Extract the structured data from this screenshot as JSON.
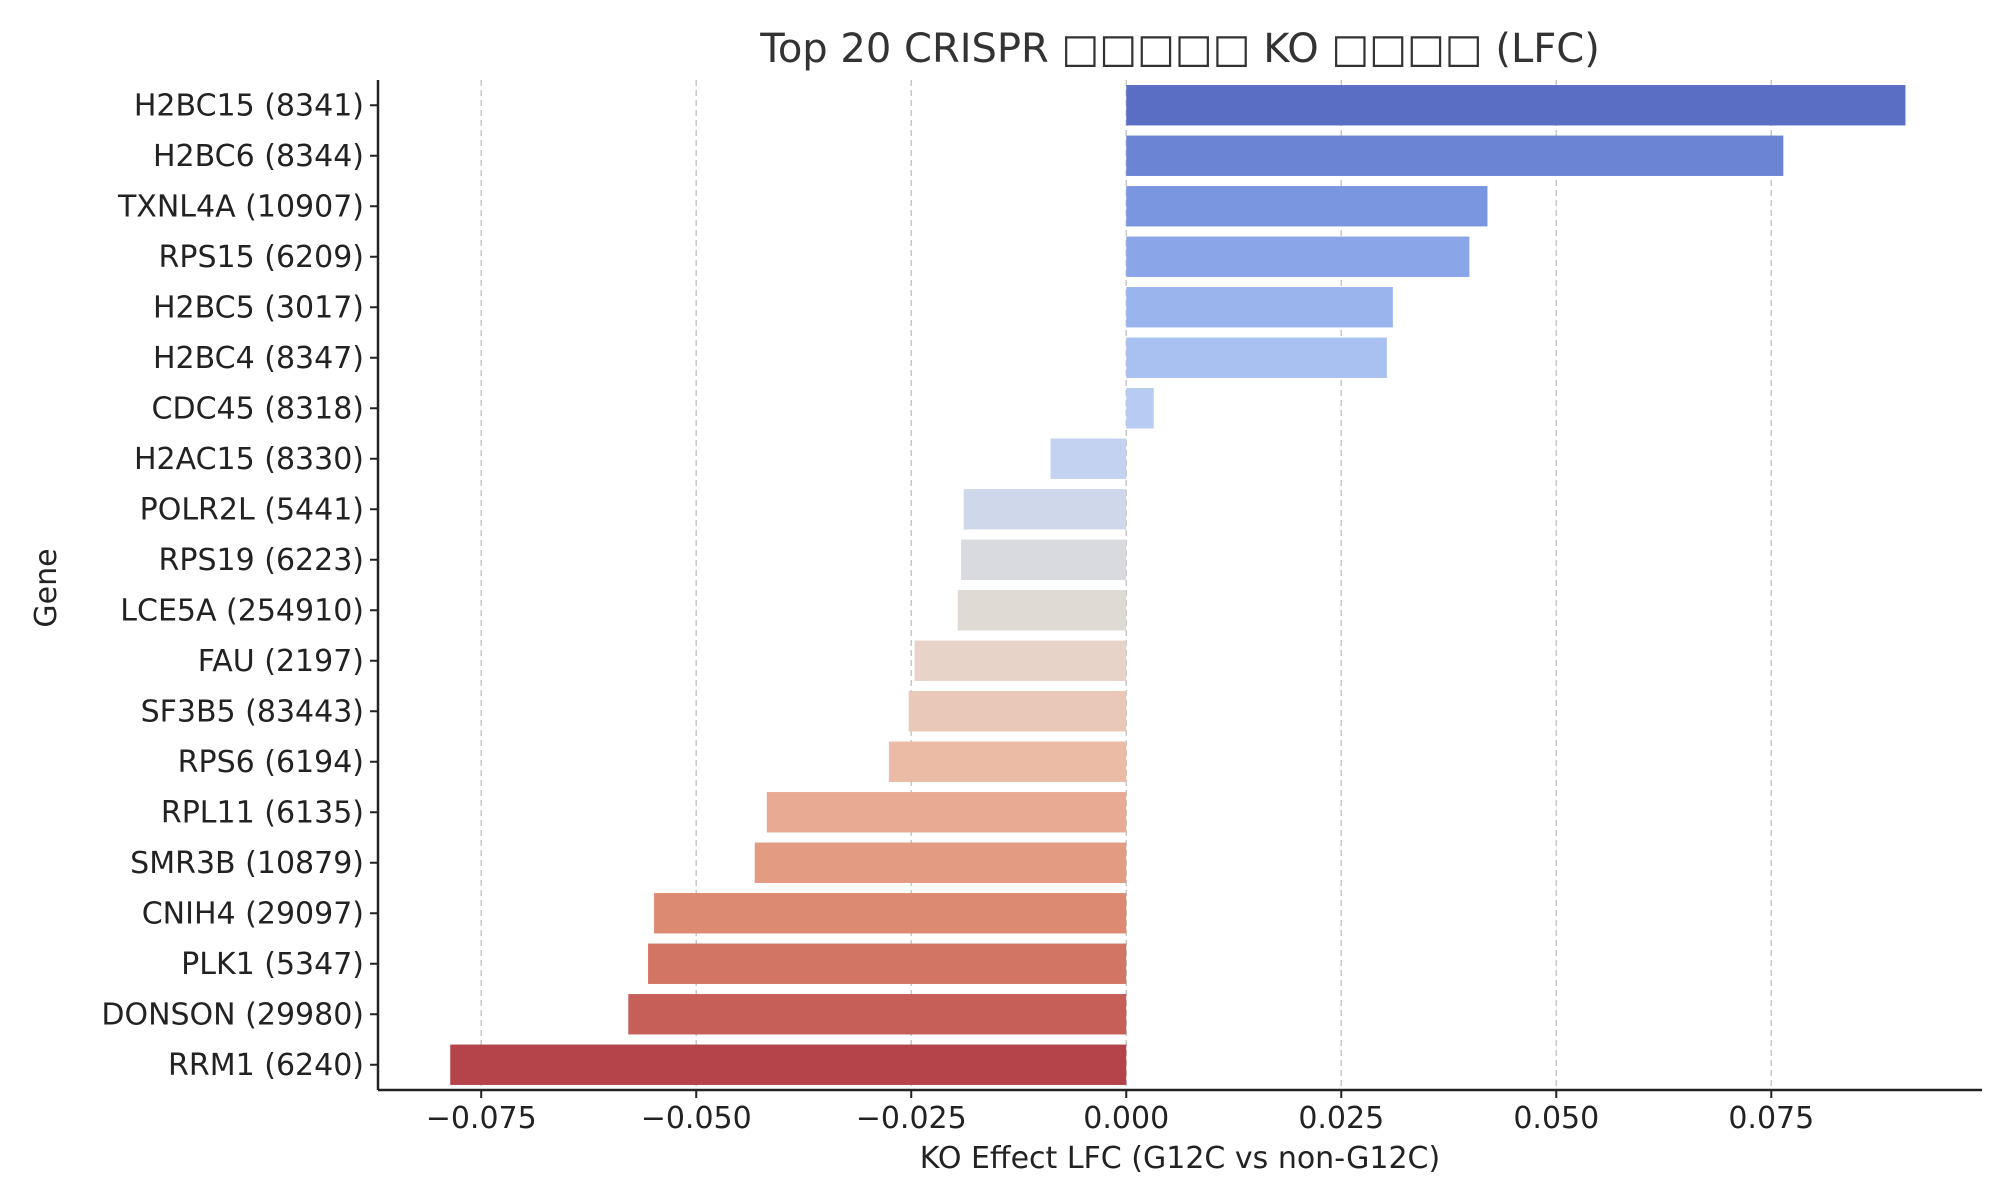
{
  "chart_data": {
    "type": "bar",
    "orientation": "horizontal",
    "title": "Top 20 CRISPR □□□□□ KO □□□□ (LFC)",
    "xlabel": "KO Effect LFC (G12C vs non-G12C)",
    "ylabel": "Gene",
    "xlim": [
      -0.087,
      0.0995
    ],
    "xticks": [
      -0.075,
      -0.05,
      -0.025,
      0.0,
      0.025,
      0.05,
      0.075
    ],
    "xtick_labels": [
      "−0.075",
      "−0.050",
      "−0.025",
      "0.000",
      "0.025",
      "0.050",
      "0.075"
    ],
    "grid": "x-dashed",
    "categories": [
      "H2BC15 (8341)",
      "H2BC6 (8344)",
      "TXNL4A (10907)",
      "RPS15 (6209)",
      "H2BC5 (3017)",
      "H2BC4 (8347)",
      "CDC45 (8318)",
      "H2AC15 (8330)",
      "POLR2L (5441)",
      "RPS19 (6223)",
      "LCE5A (254910)",
      "FAU (2197)",
      "SF3B5 (83443)",
      "RPS6 (6194)",
      "RPL11 (6135)",
      "SMR3B (10879)",
      "CNIH4 (29097)",
      "PLK1 (5347)",
      "DONSON (29980)",
      "RRM1 (6240)"
    ],
    "values": [
      0.0906,
      0.0764,
      0.042,
      0.0399,
      0.031,
      0.0303,
      0.0032,
      -0.0088,
      -0.0189,
      -0.0192,
      -0.0196,
      -0.0246,
      -0.0253,
      -0.0276,
      -0.0418,
      -0.0432,
      -0.0549,
      -0.0556,
      -0.0579,
      -0.0786
    ],
    "colors": [
      "#5a6ec4",
      "#6b84d4",
      "#7b96e0",
      "#8aa6e8",
      "#9ab5ee",
      "#a9c1f1",
      "#b7cbf3",
      "#c3d2f0",
      "#cfd8ea",
      "#d8dae0",
      "#e0dad5",
      "#e8d3c8",
      "#eac8b7",
      "#ecbba5",
      "#e8aa92",
      "#e39c81",
      "#dc8a71",
      "#d27565",
      "#c65f58",
      "#b5434a"
    ]
  }
}
